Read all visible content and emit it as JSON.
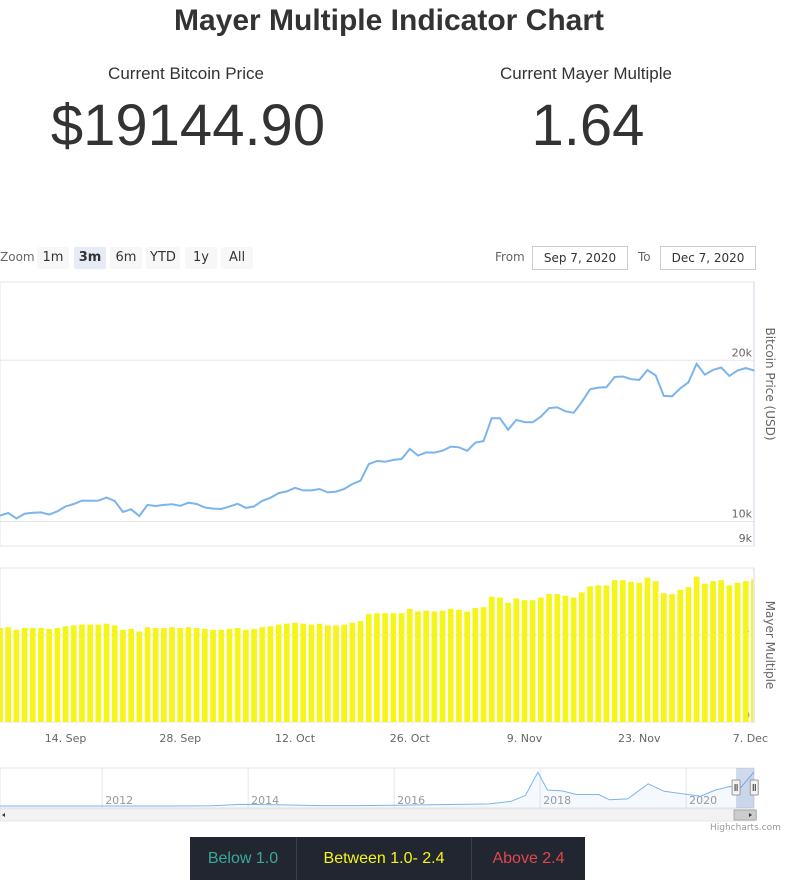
{
  "page": {
    "title": "Mayer Multiple Indicator Chart",
    "price_label": "Current Bitcoin Price",
    "price_value": "$19144.90",
    "mayer_label": "Current Mayer Multiple",
    "mayer_value": "1.64"
  },
  "toolbar": {
    "zoom_label": "Zoom",
    "buttons": [
      "1m",
      "3m",
      "6m",
      "YTD",
      "1y",
      "All"
    ],
    "active": "3m",
    "from_label": "From",
    "from_value": "Sep 7, 2020",
    "to_label": "To",
    "to_value": "Dec 7, 2020"
  },
  "legend": {
    "items": [
      {
        "label": "Below 1.0",
        "color": "#3aa89a"
      },
      {
        "label": "Between 1.0- 2.4",
        "color": "#f5f51a"
      },
      {
        "label": "Above 2.4",
        "color": "#e0474f"
      }
    ]
  },
  "credit": "Highcharts.com",
  "chart_data": [
    {
      "type": "line",
      "ylabel": "Bitcoin Price (USD)",
      "yscale": "log",
      "y_ticks": [
        "9k",
        "10k",
        "20k"
      ],
      "y_tick_values": [
        9000,
        10000,
        20000
      ],
      "ylim": [
        9000,
        28000
      ],
      "xlim": [
        "2020-09-06",
        "2020-12-07"
      ],
      "x_ticks": [
        "14. Sep",
        "28. Sep",
        "12. Oct",
        "26. Oct",
        "9. Nov",
        "23. Nov",
        "7. Dec"
      ],
      "x_tick_dates": [
        "2020-09-14",
        "2020-09-28",
        "2020-10-12",
        "2020-10-26",
        "2020-11-09",
        "2020-11-23",
        "2020-12-07"
      ],
      "line_color": "#7cb5ec",
      "grid": true,
      "series": [
        {
          "x": [
            "2020-09-06",
            "2020-09-07",
            "2020-09-08",
            "2020-09-09",
            "2020-09-10",
            "2020-09-11",
            "2020-09-12",
            "2020-09-13",
            "2020-09-14",
            "2020-09-15",
            "2020-09-16",
            "2020-09-17",
            "2020-09-18",
            "2020-09-19",
            "2020-09-20",
            "2020-09-21",
            "2020-09-22",
            "2020-09-23",
            "2020-09-24",
            "2020-09-25",
            "2020-09-26",
            "2020-09-27",
            "2020-09-28",
            "2020-09-29",
            "2020-09-30",
            "2020-10-01",
            "2020-10-02",
            "2020-10-03",
            "2020-10-04",
            "2020-10-05",
            "2020-10-06",
            "2020-10-07",
            "2020-10-08",
            "2020-10-09",
            "2020-10-10",
            "2020-10-11",
            "2020-10-12",
            "2020-10-13",
            "2020-10-14",
            "2020-10-15",
            "2020-10-16",
            "2020-10-17",
            "2020-10-18",
            "2020-10-19",
            "2020-10-20",
            "2020-10-21",
            "2020-10-22",
            "2020-10-23",
            "2020-10-24",
            "2020-10-25",
            "2020-10-26",
            "2020-10-27",
            "2020-10-28",
            "2020-10-29",
            "2020-10-30",
            "2020-10-31",
            "2020-11-01",
            "2020-11-02",
            "2020-11-03",
            "2020-11-04",
            "2020-11-05",
            "2020-11-06",
            "2020-11-07",
            "2020-11-08",
            "2020-11-09",
            "2020-11-10",
            "2020-11-11",
            "2020-11-12",
            "2020-11-13",
            "2020-11-14",
            "2020-11-15",
            "2020-11-16",
            "2020-11-17",
            "2020-11-18",
            "2020-11-19",
            "2020-11-20",
            "2020-11-21",
            "2020-11-22",
            "2020-11-23",
            "2020-11-24",
            "2020-11-25",
            "2020-11-26",
            "2020-11-27",
            "2020-11-28",
            "2020-11-29",
            "2020-11-30",
            "2020-12-01",
            "2020-12-02",
            "2020-12-03",
            "2020-12-04",
            "2020-12-05",
            "2020-12-06",
            "2020-12-07"
          ],
          "y": [
            10260,
            10370,
            10130,
            10340,
            10380,
            10400,
            10300,
            10450,
            10670,
            10780,
            10940,
            10930,
            10940,
            11080,
            10920,
            10420,
            10540,
            10240,
            10740,
            10690,
            10740,
            10770,
            10700,
            10840,
            10780,
            10620,
            10570,
            10550,
            10670,
            10790,
            10600,
            10670,
            10930,
            11070,
            11300,
            11380,
            11560,
            11430,
            11430,
            11500,
            11330,
            11370,
            11500,
            11750,
            11920,
            12800,
            12970,
            12930,
            13030,
            13080,
            13660,
            13280,
            13460,
            13450,
            13560,
            13800,
            13760,
            13550,
            14030,
            14130,
            15590,
            15590,
            14840,
            15480,
            15330,
            15320,
            15700,
            16280,
            16330,
            16060,
            15960,
            16730,
            17650,
            17780,
            17820,
            18610,
            18650,
            18440,
            18380,
            19170,
            18740,
            17160,
            17130,
            17720,
            18190,
            19700,
            18800,
            19190,
            19390,
            18690,
            19150,
            19340,
            19140
          ]
        }
      ]
    },
    {
      "type": "bar",
      "ylabel": "Mayer Multiple",
      "y_ticks": [
        "0",
        "1"
      ],
      "y_tick_values": [
        0,
        1
      ],
      "ylim": [
        0,
        1.77
      ],
      "bar_color": "#f5f51a",
      "values": [
        1.08,
        1.09,
        1.06,
        1.08,
        1.08,
        1.08,
        1.07,
        1.08,
        1.1,
        1.11,
        1.12,
        1.12,
        1.12,
        1.13,
        1.11,
        1.06,
        1.07,
        1.04,
        1.09,
        1.08,
        1.08,
        1.09,
        1.08,
        1.09,
        1.08,
        1.07,
        1.06,
        1.06,
        1.07,
        1.08,
        1.06,
        1.07,
        1.09,
        1.1,
        1.12,
        1.13,
        1.14,
        1.13,
        1.12,
        1.13,
        1.11,
        1.11,
        1.12,
        1.14,
        1.16,
        1.24,
        1.25,
        1.25,
        1.25,
        1.25,
        1.3,
        1.27,
        1.28,
        1.27,
        1.28,
        1.3,
        1.29,
        1.27,
        1.31,
        1.32,
        1.44,
        1.43,
        1.37,
        1.42,
        1.4,
        1.4,
        1.43,
        1.47,
        1.47,
        1.45,
        1.43,
        1.49,
        1.56,
        1.57,
        1.57,
        1.63,
        1.63,
        1.61,
        1.6,
        1.66,
        1.62,
        1.48,
        1.47,
        1.52,
        1.55,
        1.67,
        1.59,
        1.62,
        1.63,
        1.57,
        1.6,
        1.62,
        1.64
      ]
    },
    {
      "type": "area",
      "role": "navigator",
      "x_ticks": [
        "2012",
        "2014",
        "2016",
        "2018",
        "2020"
      ],
      "x_tick_years": [
        2012,
        2014,
        2016,
        2018,
        2020
      ],
      "x_start_year": 2010.6,
      "x_end_year": 2020.93,
      "selected_range": [
        "2020-09-07",
        "2020-12-07"
      ],
      "x": [
        2010.6,
        2011.0,
        2011.5,
        2012.0,
        2012.5,
        2013.0,
        2013.5,
        2013.9,
        2014.5,
        2015.0,
        2015.5,
        2016.0,
        2016.5,
        2017.0,
        2017.3,
        2017.6,
        2017.8,
        2017.97,
        2018.1,
        2018.3,
        2018.5,
        2018.8,
        2018.95,
        2019.2,
        2019.48,
        2019.7,
        2019.9,
        2020.2,
        2020.4,
        2020.6,
        2020.75,
        2020.93
      ],
      "y": [
        0,
        1,
        10,
        6,
        7,
        15,
        100,
        900,
        600,
        250,
        250,
        430,
        650,
        1000,
        1200,
        2600,
        6000,
        19000,
        9000,
        8500,
        6500,
        6500,
        3500,
        4000,
        12500,
        8300,
        7200,
        5500,
        9000,
        11000,
        10500,
        19140
      ]
    }
  ]
}
